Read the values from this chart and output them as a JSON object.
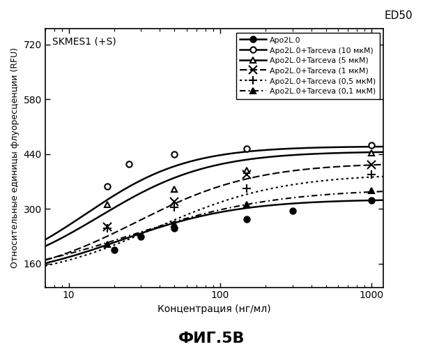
{
  "title_inside": "SKMES1 (+S)",
  "title_outside": "ED50",
  "fig_label": "ФИГ.5В",
  "xlabel": "Концентрация (нг/мл)",
  "ylabel": "Относительные единицы флуоресценции (RFU)",
  "xmin": 7,
  "xmax": 1200,
  "ymin": 100,
  "ymax": 760,
  "yticks": [
    160,
    300,
    440,
    580,
    720
  ],
  "background_color": "#ffffff",
  "series": [
    {
      "label": "Apo2L.0",
      "linestyle": "-",
      "marker": "o",
      "markerfacecolor": "black",
      "color": "black",
      "bottom": 115,
      "top": 325,
      "ec50": 22,
      "hillslope": 1.1,
      "scatter_x": [
        20,
        30,
        50,
        150,
        300,
        1000
      ],
      "scatter_y": [
        195,
        230,
        250,
        273,
        295,
        322
      ]
    },
    {
      "label": "Apo2L.0+Tarceva (10 мкМ)",
      "linestyle": "-",
      "marker": "o",
      "markerfacecolor": "white",
      "color": "black",
      "bottom": 115,
      "top": 460,
      "ec50": 13,
      "hillslope": 1.3,
      "scatter_x": [
        18,
        25,
        50,
        150,
        1000
      ],
      "scatter_y": [
        358,
        415,
        440,
        453,
        462
      ]
    },
    {
      "label": "Apo2L.0+Tarceva (5 мкМ)",
      "linestyle": "-",
      "marker": "^",
      "markerfacecolor": "white",
      "color": "black",
      "bottom": 115,
      "top": 447,
      "ec50": 16,
      "hillslope": 1.2,
      "scatter_x": [
        18,
        50,
        150,
        1000
      ],
      "scatter_y": [
        312,
        350,
        398,
        443
      ]
    },
    {
      "label": "Apo2L.0+Tarceva (1 мкМ)",
      "linestyle": "--",
      "marker": "x",
      "markerfacecolor": "black",
      "color": "black",
      "bottom": 115,
      "top": 418,
      "ec50": 28,
      "hillslope": 1.1,
      "scatter_x": [
        18,
        50,
        150,
        1000
      ],
      "scatter_y": [
        255,
        318,
        388,
        413
      ]
    },
    {
      "label": "Apo2L.0+Tarceva (0,5 мкМ)",
      "linestyle": ":",
      "marker": "+",
      "markerfacecolor": "black",
      "color": "black",
      "bottom": 115,
      "top": 390,
      "ec50": 38,
      "hillslope": 1.05,
      "scatter_x": [
        18,
        50,
        150,
        1000
      ],
      "scatter_y": [
        250,
        305,
        352,
        387
      ]
    },
    {
      "label": "Apo2L.0+Tarceva (0,1 мкМ)",
      "linestyle": "-.",
      "marker": "^",
      "markerfacecolor": "black",
      "color": "black",
      "bottom": 115,
      "top": 352,
      "ec50": 26,
      "hillslope": 0.9,
      "scatter_x": [
        18,
        50,
        150,
        1000
      ],
      "scatter_y": [
        210,
        262,
        312,
        347
      ]
    }
  ]
}
